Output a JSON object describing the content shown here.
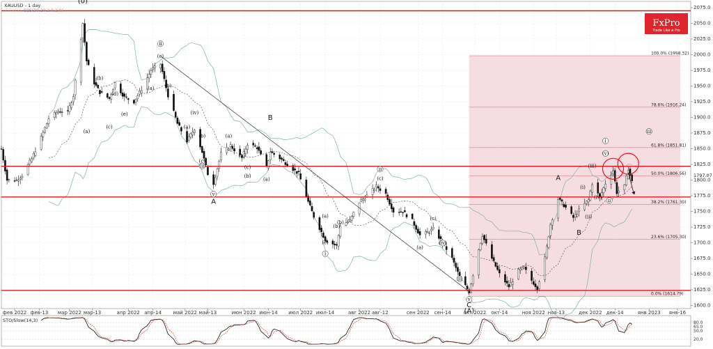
{
  "header": {
    "symbol": "XAUUSD - 1 day",
    "indicator": "BBS(20,20,2,0,2,0)"
  },
  "brand": {
    "name": "FxPro",
    "tagline": "Trade Like a Pro",
    "color": "#e0242b"
  },
  "colors": {
    "resistance": "#e8141c",
    "fib_zone": "#f6dde1",
    "fib_line": "#e06070",
    "bull": "#2a9a4a",
    "bear": "#111111",
    "band": "#7fb0a8"
  },
  "chart_data": {
    "type": "candlestick",
    "title": "XAUUSD - 1 day",
    "y_axis": {
      "min": 1595,
      "max": 2085,
      "ticks": [
        2075,
        2050,
        2025,
        2000,
        1975,
        1950,
        1925,
        1900,
        1875,
        1850,
        1825,
        1800,
        1775,
        1750,
        1725,
        1700,
        1675,
        1650,
        1625,
        1600
      ]
    },
    "x_axis_labels": [
      "фев 2022",
      "фев-13",
      "мар 2022",
      "мар-13",
      "апр 2022",
      "апр-14",
      "май 2022",
      "май-13",
      "июн 2022",
      "июн-14",
      "июл 2022",
      "июл-14",
      "авг 2022",
      "авг-12",
      "сен 2022",
      "сен-14",
      "окт 2022",
      "окт-14",
      "ноя 2022",
      "ноя-13",
      "дек 2022",
      "дек-14",
      "янв 2023",
      "янв-16"
    ],
    "horizontal_levels": [
      2070,
      1822,
      1773,
      1624
    ],
    "price_marker": "1797.07",
    "fibonacci": [
      {
        "level": "100.0%",
        "price": 1998.32
      },
      {
        "level": "78.6%",
        "price": 1916.24
      },
      {
        "level": "61.8%",
        "price": 1851.81
      },
      {
        "level": "50.0%",
        "price": 1806.56
      },
      {
        "level": "38.2%",
        "price": 1761.3
      },
      {
        "level": "23.6%",
        "price": 1705.3
      },
      {
        "level": "0.0%",
        "price": 1614.79
      }
    ],
    "close_path": [
      [
        "2022-01-24",
        1850
      ],
      [
        "2022-01-27",
        1800
      ],
      [
        "2022-02-01",
        1800
      ],
      [
        "2022-02-04",
        1808
      ],
      [
        "2022-02-09",
        1834
      ],
      [
        "2022-02-14",
        1868
      ],
      [
        "2022-02-18",
        1898
      ],
      [
        "2022-02-23",
        1910
      ],
      [
        "2022-02-28",
        1908
      ],
      [
        "2022-03-03",
        1935
      ],
      [
        "2022-03-08",
        2050
      ],
      [
        "2022-03-10",
        1990
      ],
      [
        "2022-03-14",
        1955
      ],
      [
        "2022-03-17",
        1940
      ],
      [
        "2022-03-22",
        1930
      ],
      [
        "2022-03-25",
        1955
      ],
      [
        "2022-03-30",
        1932
      ],
      [
        "2022-04-04",
        1925
      ],
      [
        "2022-04-08",
        1945
      ],
      [
        "2022-04-13",
        1975
      ],
      [
        "2022-04-18",
        1985
      ],
      [
        "2022-04-22",
        1935
      ],
      [
        "2022-04-27",
        1890
      ],
      [
        "2022-05-02",
        1862
      ],
      [
        "2022-05-06",
        1882
      ],
      [
        "2022-05-10",
        1845
      ],
      [
        "2022-05-13",
        1810
      ],
      [
        "2022-05-16",
        1795
      ],
      [
        "2022-05-20",
        1842
      ],
      [
        "2022-05-25",
        1855
      ],
      [
        "2022-05-31",
        1835
      ],
      [
        "2022-06-03",
        1858
      ],
      [
        "2022-06-08",
        1852
      ],
      [
        "2022-06-13",
        1820
      ],
      [
        "2022-06-15",
        1845
      ],
      [
        "2022-06-20",
        1835
      ],
      [
        "2022-06-24",
        1825
      ],
      [
        "2022-06-30",
        1810
      ],
      [
        "2022-07-05",
        1765
      ],
      [
        "2022-07-08",
        1742
      ],
      [
        "2022-07-14",
        1705
      ],
      [
        "2022-07-20",
        1695
      ],
      [
        "2022-07-22",
        1728
      ],
      [
        "2022-07-27",
        1735
      ],
      [
        "2022-08-01",
        1765
      ],
      [
        "2022-08-05",
        1775
      ],
      [
        "2022-08-10",
        1790
      ],
      [
        "2022-08-15",
        1778
      ],
      [
        "2022-08-19",
        1750
      ],
      [
        "2022-08-24",
        1750
      ],
      [
        "2022-08-29",
        1735
      ],
      [
        "2022-09-02",
        1712
      ],
      [
        "2022-09-07",
        1718
      ],
      [
        "2022-09-09",
        1722
      ],
      [
        "2022-09-14",
        1700
      ],
      [
        "2022-09-19",
        1675
      ],
      [
        "2022-09-23",
        1645
      ],
      [
        "2022-09-28",
        1622
      ],
      [
        "2022-10-03",
        1690
      ],
      [
        "2022-10-05",
        1712
      ],
      [
        "2022-10-10",
        1675
      ],
      [
        "2022-10-14",
        1650
      ],
      [
        "2022-10-19",
        1630
      ],
      [
        "2022-10-24",
        1655
      ],
      [
        "2022-10-27",
        1660
      ],
      [
        "2022-10-31",
        1640
      ],
      [
        "2022-11-03",
        1628
      ],
      [
        "2022-11-07",
        1675
      ],
      [
        "2022-11-10",
        1730
      ],
      [
        "2022-11-14",
        1770
      ],
      [
        "2022-11-17",
        1760
      ],
      [
        "2022-11-22",
        1740
      ],
      [
        "2022-11-25",
        1752
      ],
      [
        "2022-11-30",
        1768
      ],
      [
        "2022-12-02",
        1795
      ],
      [
        "2022-12-06",
        1772
      ],
      [
        "2022-12-09",
        1795
      ],
      [
        "2022-12-13",
        1815
      ],
      [
        "2022-12-15",
        1780
      ],
      [
        "2022-12-19",
        1790
      ],
      [
        "2022-12-21",
        1818
      ],
      [
        "2022-12-23",
        1797
      ]
    ],
    "wave_labels": [
      {
        "text": "(0)",
        "date": "2022-03-08",
        "price": 2082,
        "size": "big"
      },
      {
        "text": "B",
        "date": "2022-06-15",
        "price": 1896,
        "size": "big"
      },
      {
        "text": "A",
        "date": "2022-05-16",
        "price": 1762,
        "size": "big"
      },
      {
        "text": "C",
        "date": "2022-09-28",
        "price": 1597,
        "size": "big"
      },
      {
        "text": "(A)",
        "date": "2022-09-28",
        "price": 1588,
        "size": "big"
      },
      {
        "text": "A",
        "date": "2022-11-14",
        "price": 1800,
        "size": "big"
      },
      {
        "text": "B",
        "date": "2022-11-25",
        "price": 1713,
        "size": "big"
      },
      {
        "text": "(b)",
        "date": "2022-03-17",
        "price": 1960
      },
      {
        "text": "(a)",
        "date": "2022-03-10",
        "price": 1875
      },
      {
        "text": "(c)",
        "date": "2022-03-22",
        "price": 1882
      },
      {
        "text": "(d)",
        "date": "2022-03-25",
        "price": 1935
      },
      {
        "text": "(e)",
        "date": "2022-03-30",
        "price": 1903
      },
      {
        "text": "ii",
        "date": "2022-04-18",
        "price": 2015,
        "circle": true
      },
      {
        "text": "(c)",
        "date": "2022-04-18",
        "price": 1995
      },
      {
        "text": "(a)",
        "date": "2022-04-13",
        "price": 1944
      },
      {
        "text": "(b)",
        "date": "2022-04-22",
        "price": 1948
      },
      {
        "text": "(iv)",
        "date": "2022-05-06",
        "price": 1905
      },
      {
        "text": "(a)",
        "date": "2022-05-02",
        "price": 1882
      },
      {
        "text": "(b)",
        "date": "2022-05-10",
        "price": 1868
      },
      {
        "text": "(c)",
        "date": "2022-05-10",
        "price": 1828
      },
      {
        "text": "iii",
        "date": "2022-05-10",
        "price": 1820,
        "circle": true
      },
      {
        "text": "v",
        "date": "2022-05-16",
        "price": 1775,
        "circle": true
      },
      {
        "text": "(a)",
        "date": "2022-05-24",
        "price": 1868
      },
      {
        "text": "(b)",
        "date": "2022-05-31",
        "price": 1836
      },
      {
        "text": "(c)",
        "date": "2022-06-03",
        "price": 1818
      },
      {
        "text": "(b)",
        "date": "2022-06-03",
        "price": 1804
      },
      {
        "text": "(a)",
        "date": "2022-06-13",
        "price": 1799
      },
      {
        "text": "ii",
        "date": "2022-08-12",
        "price": 1815,
        "circle": true
      },
      {
        "text": "(c)",
        "date": "2022-08-12",
        "price": 1800
      },
      {
        "text": "(a)",
        "date": "2022-07-14",
        "price": 1740
      },
      {
        "text": "(b)",
        "date": "2022-07-20",
        "price": 1724
      },
      {
        "text": "(c)",
        "date": "2022-07-14",
        "price": 1698
      },
      {
        "text": "i",
        "date": "2022-07-14",
        "price": 1680,
        "circle": true
      },
      {
        "text": "(b)",
        "date": "2022-07-22",
        "price": 1730
      },
      {
        "text": "(c)",
        "date": "2022-09-09",
        "price": 1736
      },
      {
        "text": "(iv)",
        "date": "2022-09-14",
        "price": 1697,
        "circle": true
      },
      {
        "text": "(a)",
        "date": "2022-09-02",
        "price": 1690
      },
      {
        "text": "iii",
        "date": "2022-09-23",
        "price": 1640,
        "circle": true
      },
      {
        "text": "v",
        "date": "2022-09-28",
        "price": 1607,
        "circle": true
      },
      {
        "text": "i",
        "date": "2022-12-09",
        "price": 1860,
        "circle": true
      },
      {
        "text": "(v)",
        "date": "2022-12-09",
        "price": 1840,
        "circle": true
      },
      {
        "text": "(iii)",
        "date": "2022-12-02",
        "price": 1820
      },
      {
        "text": "(i)",
        "date": "2022-11-27",
        "price": 1786
      },
      {
        "text": "(iv)",
        "date": "2022-12-05",
        "price": 1770
      },
      {
        "text": "(ii)",
        "date": "2022-11-30",
        "price": 1739
      },
      {
        "text": "ii",
        "date": "2022-12-11",
        "price": 1765,
        "circle": true
      },
      {
        "text": "iii",
        "date": "2023-01-01",
        "price": 1875,
        "circle": true
      }
    ],
    "trendline": {
      "from": [
        "2022-04-18",
        1998
      ],
      "to": [
        "2022-09-28",
        1622
      ]
    },
    "stoch": {
      "label": "STO/Slow(14,3)",
      "ticks": [
        80,
        65,
        50,
        20
      ],
      "tick_labels": [
        "80.0",
        "65.0",
        "50.0",
        "20.0"
      ]
    }
  }
}
